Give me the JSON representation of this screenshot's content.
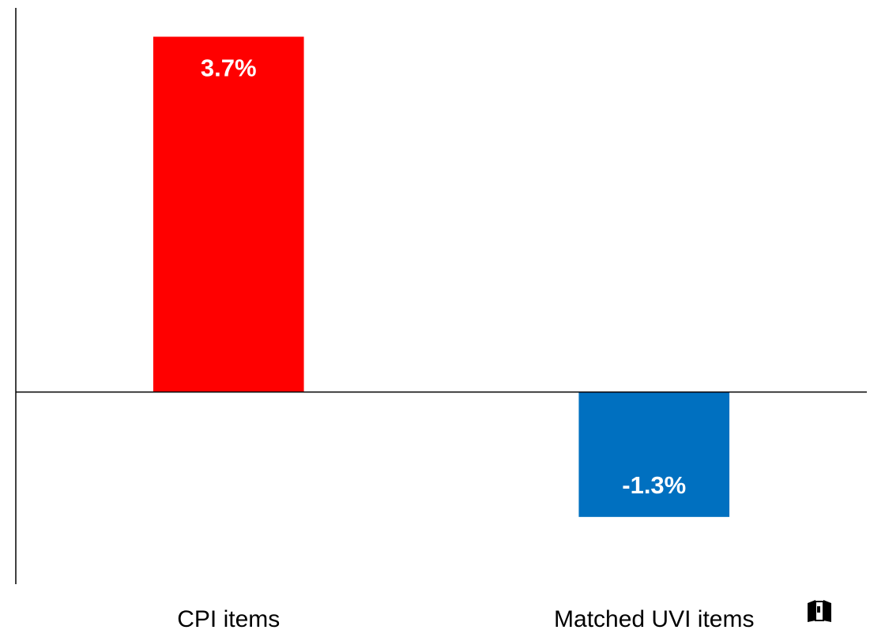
{
  "chart_data": {
    "type": "bar",
    "categories": [
      "CPI items",
      "Matched UVI items"
    ],
    "values": [
      3.7,
      -1.3
    ],
    "value_labels": [
      "3.7%",
      "-1.3%"
    ],
    "colors": [
      "#ff0000",
      "#0070c0"
    ],
    "ylim": [
      -2,
      4
    ]
  }
}
